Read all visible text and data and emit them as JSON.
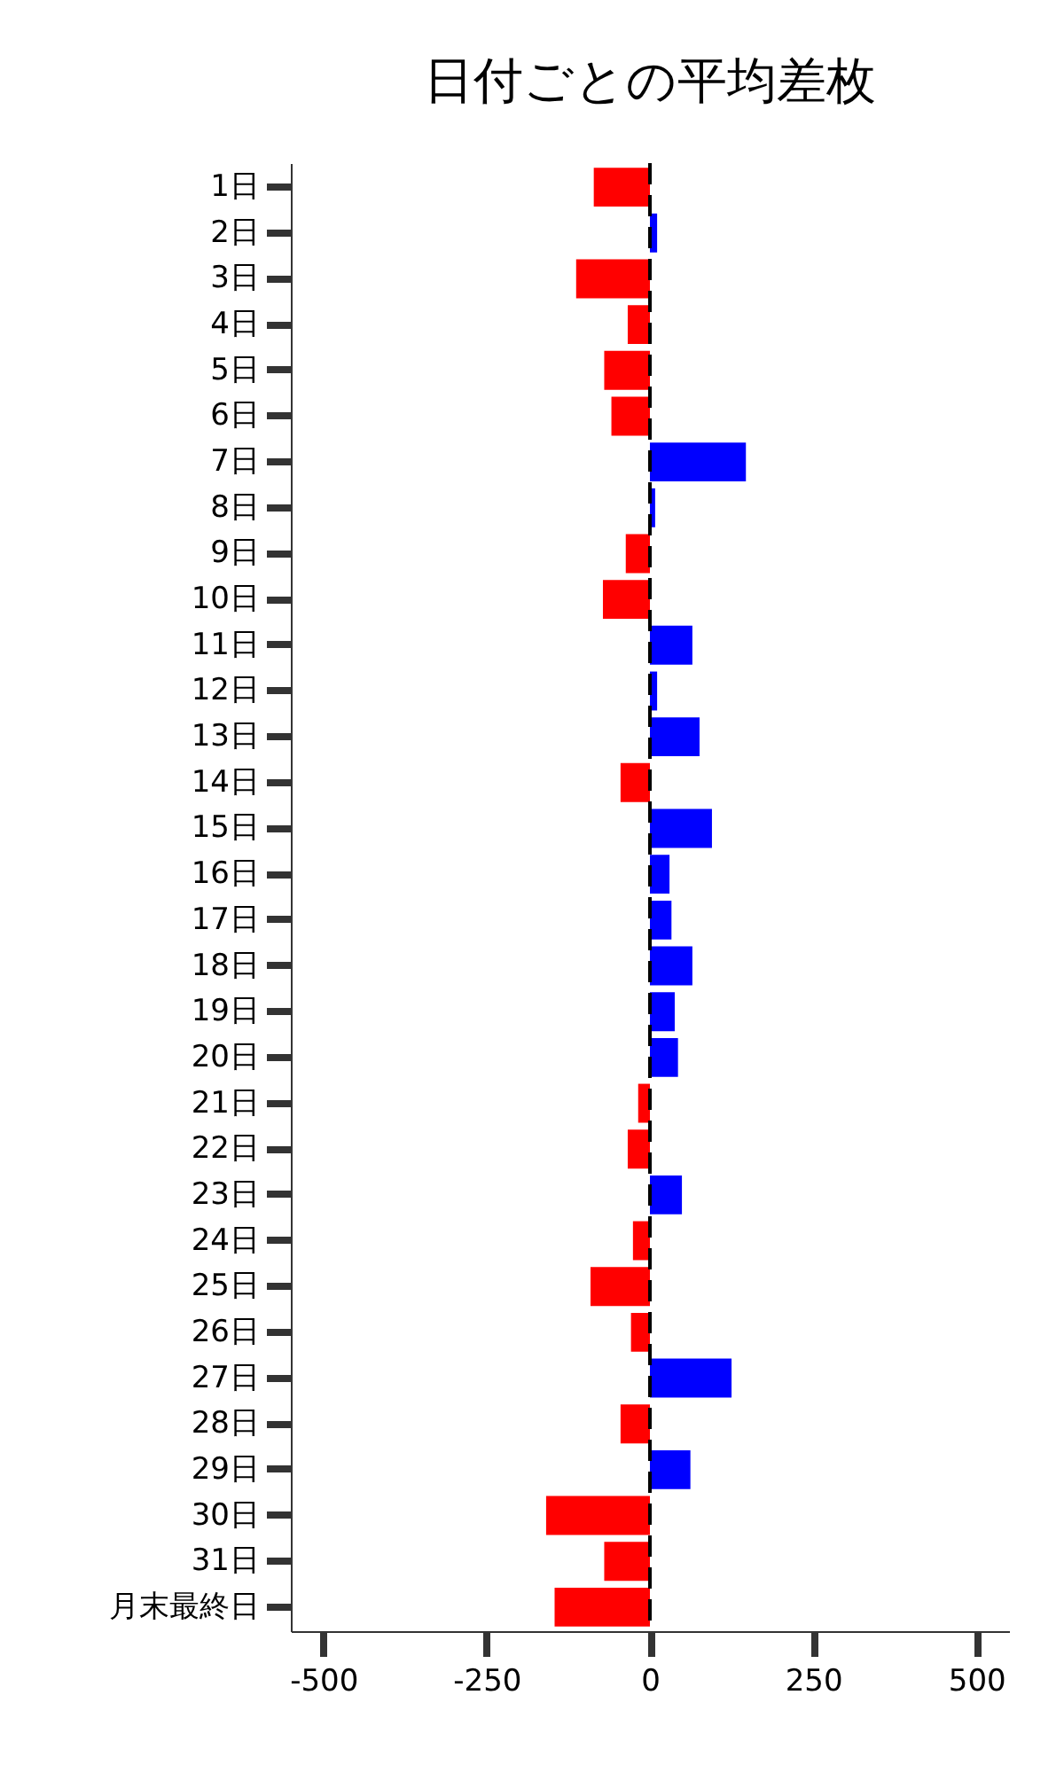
{
  "chart_data": {
    "type": "bar",
    "orientation": "horizontal",
    "title": "日付ごとの平均差枚",
    "categories": [
      "1日",
      "2日",
      "3日",
      "4日",
      "5日",
      "6日",
      "7日",
      "8日",
      "9日",
      "10日",
      "11日",
      "12日",
      "13日",
      "14日",
      "15日",
      "16日",
      "17日",
      "18日",
      "19日",
      "20日",
      "21日",
      "22日",
      "23日",
      "24日",
      "25日",
      "26日",
      "27日",
      "28日",
      "29日",
      "30日",
      "31日",
      "月末最終日"
    ],
    "values": [
      -86,
      11,
      -113,
      -34,
      -70,
      -59,
      147,
      8,
      -37,
      -72,
      65,
      11,
      76,
      -45,
      95,
      30,
      33,
      65,
      38,
      43,
      -18,
      -34,
      49,
      -26,
      -91,
      -29,
      125,
      -45,
      62,
      -159,
      -70,
      -146
    ],
    "colors": [
      "#ff0000",
      "#0000ff",
      "#ff0000",
      "#ff0000",
      "#ff0000",
      "#ff0000",
      "#0000ff",
      "#0000ff",
      "#ff0000",
      "#ff0000",
      "#0000ff",
      "#0000ff",
      "#0000ff",
      "#ff0000",
      "#0000ff",
      "#0000ff",
      "#0000ff",
      "#0000ff",
      "#0000ff",
      "#0000ff",
      "#ff0000",
      "#ff0000",
      "#0000ff",
      "#ff0000",
      "#ff0000",
      "#ff0000",
      "#0000ff",
      "#ff0000",
      "#0000ff",
      "#ff0000",
      "#ff0000",
      "#ff0000"
    ],
    "xlim": [
      -550,
      550
    ],
    "xticks": [
      -500,
      -250,
      0,
      250,
      500
    ],
    "ref_lines": [
      {
        "axis": "x",
        "value": 0,
        "color": "#000000",
        "line_style": "dashed"
      }
    ],
    "grid": false
  }
}
